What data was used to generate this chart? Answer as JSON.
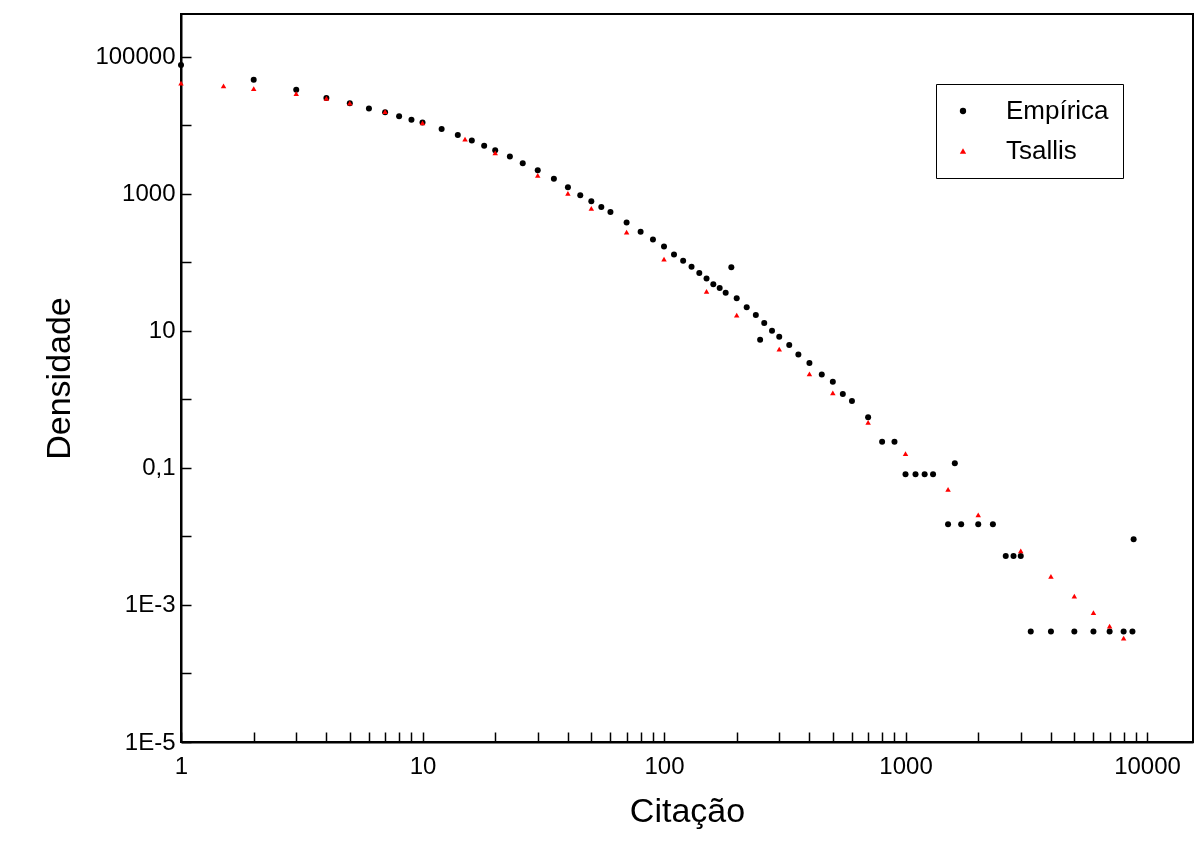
{
  "chart_data": {
    "type": "scatter",
    "xlabel": "Citação",
    "ylabel": "Densidade",
    "log": "xy",
    "grid": false,
    "legend": "top right",
    "xlim": [
      1,
      15500
    ],
    "ylim": [
      1e-05,
      420000
    ],
    "xticks": [
      1,
      {
        "value": 2,
        "label": null
      },
      {
        "value": 3,
        "label": null
      },
      {
        "value": 4,
        "label": null
      },
      {
        "value": 5,
        "label": null
      },
      {
        "value": 6,
        "label": null
      },
      {
        "value": 7,
        "label": null
      },
      {
        "value": 8,
        "label": null
      },
      {
        "value": 9,
        "label": null
      },
      10,
      {
        "value": 20,
        "label": null
      },
      {
        "value": 30,
        "label": null
      },
      {
        "value": 40,
        "label": null
      },
      {
        "value": 50,
        "label": null
      },
      {
        "value": 60,
        "label": null
      },
      {
        "value": 70,
        "label": null
      },
      {
        "value": 80,
        "label": null
      },
      {
        "value": 90,
        "label": null
      },
      100,
      {
        "value": 200,
        "label": null
      },
      {
        "value": 300,
        "label": null
      },
      {
        "value": 400,
        "label": null
      },
      {
        "value": 500,
        "label": null
      },
      {
        "value": 600,
        "label": null
      },
      {
        "value": 700,
        "label": null
      },
      {
        "value": 800,
        "label": null
      },
      {
        "value": 900,
        "label": null
      },
      1000,
      {
        "value": 2000,
        "label": null
      },
      {
        "value": 3000,
        "label": null
      },
      {
        "value": 4000,
        "label": null
      },
      {
        "value": 5000,
        "label": null
      },
      {
        "value": 6000,
        "label": null
      },
      {
        "value": 7000,
        "label": null
      },
      {
        "value": 8000,
        "label": null
      },
      {
        "value": 9000,
        "label": null
      },
      10000
    ],
    "yticks": [
      {
        "value": 1e-05,
        "label": "1E-5"
      },
      {
        "value": 0.0001,
        "label": null
      },
      {
        "value": 0.001,
        "label": "1E-3"
      },
      {
        "value": 0.01,
        "label": null
      },
      {
        "value": 0.1,
        "label": "0,1"
      },
      {
        "value": 1,
        "label": null
      },
      10,
      {
        "value": 100,
        "label": null
      },
      1000,
      {
        "value": 10000,
        "label": null
      },
      100000
    ],
    "series": [
      {
        "name": "Empírica",
        "color": "#000000",
        "marker": "circle",
        "x": [
          1,
          2,
          3,
          4,
          5,
          6,
          7,
          8,
          9,
          10,
          12,
          14,
          16,
          18,
          20,
          23,
          26,
          30,
          35,
          40,
          45,
          50,
          55,
          60,
          70,
          80,
          90,
          100,
          110,
          120,
          130,
          140,
          150,
          160,
          170,
          180,
          190,
          200,
          220,
          240,
          250,
          260,
          280,
          300,
          330,
          360,
          400,
          450,
          500,
          550,
          600,
          700,
          800,
          900,
          1000,
          1100,
          1200,
          1300,
          1600,
          1500,
          1700,
          2000,
          2300,
          2600,
          2800,
          3000,
          3300,
          4000,
          5000,
          6000,
          7000,
          8000,
          8700,
          8800
        ],
        "values": [
          76000,
          46000,
          33000,
          25000,
          21000,
          17500,
          15500,
          13500,
          12000,
          11000,
          8800,
          7200,
          6000,
          5000,
          4300,
          3500,
          2800,
          2200,
          1650,
          1250,
          950,
          780,
          640,
          540,
          380,
          280,
          215,
          170,
          130,
          105,
          86,
          70,
          58,
          48,
          42,
          36,
          85,
          30,
          22,
          17,
          7.4,
          13,
          10,
          8.2,
          6.2,
          4.5,
          3.4,
          2.3,
          1.8,
          1.2,
          0.95,
          0.55,
          0.24,
          0.24,
          0.081,
          0.081,
          0.081,
          0.081,
          0.117,
          0.015,
          0.015,
          0.015,
          0.015,
          0.0052,
          0.0052,
          0.0052,
          0.00041,
          0.00041,
          0.00041,
          0.00041,
          0.00041,
          0.00041,
          0.00041,
          0.0091
        ]
      },
      {
        "name": "Tsallis",
        "color": "#ff0000",
        "marker": "triangle",
        "x": [
          1,
          1.5,
          2,
          3,
          4,
          5,
          7,
          10,
          15,
          20,
          30,
          40,
          50,
          70,
          100,
          150,
          200,
          300,
          400,
          500,
          700,
          1000,
          1500,
          2000,
          3000,
          4000,
          5000,
          6000,
          7000,
          8000
        ],
        "values": [
          41200,
          37570,
          34350,
          28940,
          24600,
          21100,
          15850,
          10800,
          6250,
          3940,
          1850,
          1014,
          614,
          275,
          111,
          37.6,
          17.0,
          5.4,
          2.36,
          1.24,
          0.462,
          0.161,
          0.0485,
          0.0206,
          0.00616,
          0.00261,
          0.00134,
          0.000775,
          0.000489,
          0.000328
        ]
      }
    ]
  }
}
